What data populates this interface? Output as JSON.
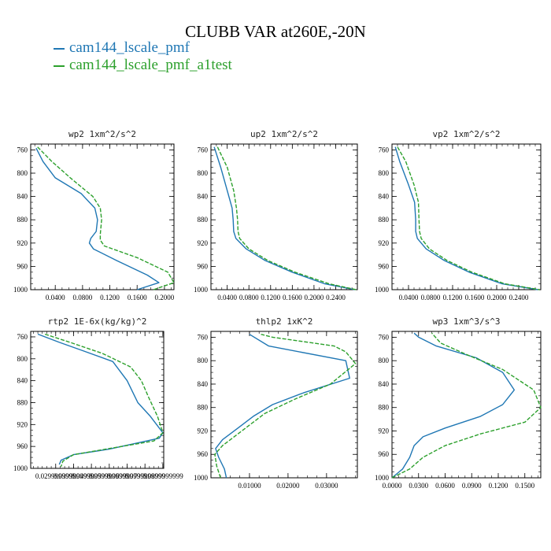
{
  "figure": {
    "title": "CLUBB VAR at260E,-20N",
    "legend": [
      {
        "name": "cam144_lscale_pmf",
        "color": "#1f77b4"
      },
      {
        "name": "cam144_lscale_pmf_a1test",
        "color": "#2ca02c"
      }
    ]
  },
  "chart_data": [
    {
      "type": "line",
      "title": "wp2  1xm^2/s^2",
      "ylim": [
        1000,
        750
      ],
      "yticks": [
        760,
        800,
        840,
        880,
        920,
        960,
        1000
      ],
      "xlim": [
        0.004,
        0.214
      ],
      "xticks": [
        0.04,
        0.08,
        0.12,
        0.16,
        0.2
      ],
      "xtick_labels": [
        "0.0400",
        "0.0800",
        "0.1200",
        "0.1600",
        "0.2000"
      ],
      "series": [
        {
          "name": "cam144_lscale_pmf",
          "color": "#1f77b4",
          "dashed": false,
          "x": [
            0.012,
            0.022,
            0.04,
            0.078,
            0.098,
            0.102,
            0.1,
            0.092,
            0.09,
            0.096,
            0.13,
            0.175,
            0.192,
            0.16
          ],
          "y": [
            757,
            780,
            808,
            835,
            860,
            880,
            900,
            912,
            920,
            930,
            950,
            975,
            988,
            1000
          ]
        },
        {
          "name": "cam144_lscale_pmf_a1test",
          "color": "#2ca02c",
          "dashed": true,
          "x": [
            0.014,
            0.035,
            0.062,
            0.095,
            0.106,
            0.108,
            0.106,
            0.106,
            0.112,
            0.16,
            0.205,
            0.214,
            0.184
          ],
          "y": [
            755,
            780,
            808,
            840,
            860,
            880,
            905,
            915,
            925,
            945,
            970,
            988,
            1000
          ]
        }
      ]
    },
    {
      "type": "line",
      "title": "up2  1xm^2/s^2",
      "ylim": [
        1000,
        750
      ],
      "yticks": [
        760,
        800,
        840,
        880,
        920,
        960,
        1000
      ],
      "xlim": [
        0.01,
        0.28
      ],
      "xticks": [
        0.04,
        0.08,
        0.12,
        0.16,
        0.2,
        0.24
      ],
      "xtick_labels": [
        "0.0400",
        "0.0800",
        "0.1200",
        "0.1600",
        "0.2000",
        "0.2400"
      ],
      "series": [
        {
          "name": "cam144_lscale_pmf",
          "color": "#1f77b4",
          "dashed": false,
          "x": [
            0.016,
            0.028,
            0.04,
            0.049,
            0.051,
            0.052,
            0.056,
            0.075,
            0.11,
            0.16,
            0.22,
            0.275
          ],
          "y": [
            755,
            790,
            830,
            860,
            880,
            900,
            912,
            930,
            950,
            970,
            990,
            1000
          ]
        },
        {
          "name": "cam144_lscale_pmf_a1test",
          "color": "#2ca02c",
          "dashed": true,
          "x": [
            0.022,
            0.04,
            0.052,
            0.057,
            0.059,
            0.06,
            0.063,
            0.08,
            0.115,
            0.165,
            0.228,
            0.278
          ],
          "y": [
            755,
            790,
            830,
            860,
            880,
            900,
            912,
            930,
            950,
            970,
            990,
            1000
          ]
        }
      ]
    },
    {
      "type": "line",
      "title": "vp2  1xm^2/s^2",
      "ylim": [
        1000,
        750
      ],
      "yticks": [
        760,
        800,
        840,
        880,
        920,
        960,
        1000
      ],
      "xlim": [
        0.01,
        0.28
      ],
      "xticks": [
        0.04,
        0.08,
        0.12,
        0.16,
        0.2,
        0.24
      ],
      "xtick_labels": [
        "0.0400",
        "0.0800",
        "0.1200",
        "0.1600",
        "0.2000",
        "0.2400"
      ],
      "series": [
        {
          "name": "cam144_lscale_pmf",
          "color": "#1f77b4",
          "dashed": false,
          "x": [
            0.016,
            0.024,
            0.04,
            0.051,
            0.053,
            0.053,
            0.056,
            0.072,
            0.105,
            0.15,
            0.21,
            0.275
          ],
          "y": [
            755,
            780,
            820,
            850,
            880,
            900,
            912,
            930,
            950,
            970,
            990,
            1000
          ]
        },
        {
          "name": "cam144_lscale_pmf_a1test",
          "color": "#2ca02c",
          "dashed": true,
          "x": [
            0.02,
            0.035,
            0.05,
            0.058,
            0.059,
            0.06,
            0.063,
            0.078,
            0.11,
            0.155,
            0.215,
            0.278
          ],
          "y": [
            755,
            780,
            820,
            850,
            880,
            900,
            912,
            930,
            950,
            970,
            990,
            1000
          ]
        }
      ]
    },
    {
      "type": "line",
      "title": "rtp2  1E-6x(kg/kg)^2",
      "ylim": [
        1000,
        750
      ],
      "yticks": [
        760,
        800,
        840,
        880,
        920,
        960,
        1000
      ],
      "xlim": [
        0.016,
        0.0905
      ],
      "xticks": [
        0.03,
        0.04,
        0.05,
        0.06,
        0.07,
        0.08,
        0.09
      ],
      "xtick_labels": [
        "0.0299999999",
        "0.0399999999",
        "0.0499999999",
        "0.0599999999",
        "0.0699999999",
        "0.0799999999",
        "0.0899999999"
      ],
      "series": [
        {
          "name": "cam144_lscale_pmf",
          "color": "#1f77b4",
          "dashed": false,
          "x": [
            0.02,
            0.032,
            0.045,
            0.062,
            0.07,
            0.073,
            0.076,
            0.083,
            0.09,
            0.088,
            0.06,
            0.04,
            0.033,
            0.032
          ],
          "y": [
            755,
            770,
            785,
            805,
            840,
            860,
            880,
            905,
            935,
            945,
            965,
            975,
            985,
            993
          ]
        },
        {
          "name": "cam144_lscale_pmf_a1test",
          "color": "#2ca02c",
          "dashed": true,
          "x": [
            0.024,
            0.038,
            0.056,
            0.072,
            0.078,
            0.082,
            0.087,
            0.09,
            0.085,
            0.058,
            0.04,
            0.034,
            0.033
          ],
          "y": [
            755,
            770,
            790,
            815,
            840,
            870,
            905,
            935,
            950,
            965,
            975,
            987,
            997
          ]
        }
      ]
    },
    {
      "type": "line",
      "title": "thlp2  1xK^2",
      "ylim": [
        1000,
        750
      ],
      "yticks": [
        760,
        800,
        840,
        880,
        920,
        960,
        1000
      ],
      "xlim": [
        0.0,
        0.038
      ],
      "xticks": [
        0.01,
        0.02,
        0.03
      ],
      "xtick_labels": [
        "0.01000",
        "0.02000",
        "0.03000"
      ],
      "series": [
        {
          "name": "cam144_lscale_pmf",
          "color": "#1f77b4",
          "dashed": false,
          "x": [
            0.004,
            0.0035,
            0.002,
            0.0012,
            0.003,
            0.007,
            0.011,
            0.016,
            0.024,
            0.036,
            0.035,
            0.015,
            0.01
          ],
          "y": [
            1000,
            985,
            965,
            950,
            935,
            915,
            895,
            875,
            855,
            830,
            800,
            775,
            755
          ]
        },
        {
          "name": "cam144_lscale_pmf_a1test",
          "color": "#2ca02c",
          "dashed": true,
          "x": [
            0.0025,
            0.0015,
            0.001,
            0.003,
            0.008,
            0.014,
            0.022,
            0.031,
            0.0375,
            0.035,
            0.032,
            0.016,
            0.013
          ],
          "y": [
            1000,
            980,
            960,
            945,
            920,
            890,
            865,
            840,
            805,
            785,
            775,
            760,
            755
          ]
        }
      ]
    },
    {
      "type": "line",
      "title": "wp3  1xm^3/s^3",
      "ylim": [
        1000,
        750
      ],
      "yticks": [
        760,
        800,
        840,
        880,
        920,
        960,
        1000
      ],
      "xlim": [
        0.0,
        0.168
      ],
      "xticks": [
        0.0,
        0.03,
        0.06,
        0.09,
        0.12,
        0.15
      ],
      "xtick_labels": [
        "0.0000",
        "0.0300",
        "0.0600",
        "0.0900",
        "0.1200",
        "0.1500"
      ],
      "series": [
        {
          "name": "cam144_lscale_pmf",
          "color": "#1f77b4",
          "dashed": false,
          "x": [
            0.0,
            0.012,
            0.02,
            0.025,
            0.035,
            0.06,
            0.1,
            0.125,
            0.138,
            0.125,
            0.095,
            0.05,
            0.03,
            0.025
          ],
          "y": [
            1000,
            985,
            965,
            945,
            930,
            915,
            895,
            875,
            850,
            820,
            795,
            775,
            760,
            753
          ]
        },
        {
          "name": "cam144_lscale_pmf_a1test",
          "color": "#2ca02c",
          "dashed": true,
          "x": [
            0.0,
            0.02,
            0.035,
            0.06,
            0.1,
            0.15,
            0.168,
            0.16,
            0.125,
            0.085,
            0.055,
            0.045
          ],
          "y": [
            1000,
            985,
            965,
            945,
            925,
            905,
            880,
            850,
            815,
            790,
            770,
            753
          ]
        }
      ]
    }
  ]
}
